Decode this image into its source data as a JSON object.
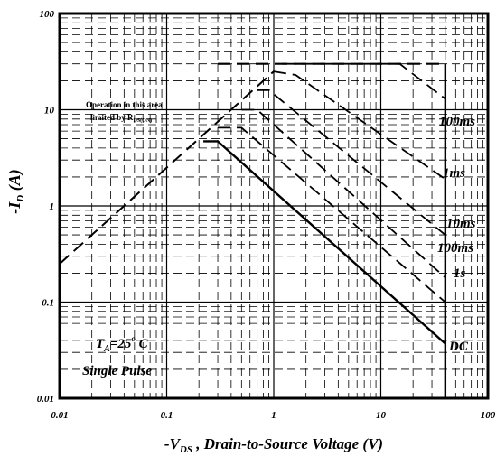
{
  "chart_data": {
    "type": "line",
    "title": "",
    "xlabel": "-V_DS , Drain-to-Source Voltage (V)",
    "ylabel": "-I_D (A)",
    "x_scale": "log",
    "y_scale": "log",
    "xlim": [
      0.01,
      100
    ],
    "ylim": [
      0.01,
      100
    ],
    "x_ticks": [
      "0.01",
      "0.1",
      "1",
      "10",
      "100"
    ],
    "y_ticks": [
      "0.01",
      "0.1",
      "1",
      "10",
      "100"
    ],
    "grid": true,
    "annotation": {
      "line1": "Operation in this area",
      "line2_prefix": "limited by R",
      "line2_sub": "DS(ON)"
    },
    "conditions": {
      "ta_prefix": "T",
      "ta_sub": "A",
      "ta_value": "=25",
      "ta_sup": "o",
      "ta_unit": " C",
      "pulse": "Single  Pulse"
    },
    "rds_limit": {
      "name": "",
      "x": [
        0.01,
        1.0
      ],
      "y": [
        0.25,
        25
      ]
    },
    "current_limit": {
      "name": "",
      "x": [
        0.3,
        40
      ],
      "y": [
        30,
        30
      ]
    },
    "series": [
      {
        "name": "100ms",
        "x": [
          1.2,
          15,
          40
        ],
        "y": [
          30,
          30,
          13
        ]
      },
      {
        "name": "1ms",
        "x": [
          1.0,
          1.6,
          40
        ],
        "y": [
          25,
          23,
          1.9
        ]
      },
      {
        "name": "10ms",
        "x": [
          0.7,
          0.9,
          40
        ],
        "y": [
          16,
          16,
          0.5
        ]
      },
      {
        "name": "100ms",
        "x": [
          0.5,
          0.7,
          40
        ],
        "y": [
          10,
          10,
          0.18
        ]
      },
      {
        "name": "1s",
        "x": [
          0.3,
          0.5,
          40
        ],
        "y": [
          6.5,
          6.5,
          0.1
        ]
      },
      {
        "name": "DC",
        "x": [
          0.22,
          0.3,
          40
        ],
        "y": [
          4.7,
          4.7,
          0.037
        ]
      }
    ]
  }
}
